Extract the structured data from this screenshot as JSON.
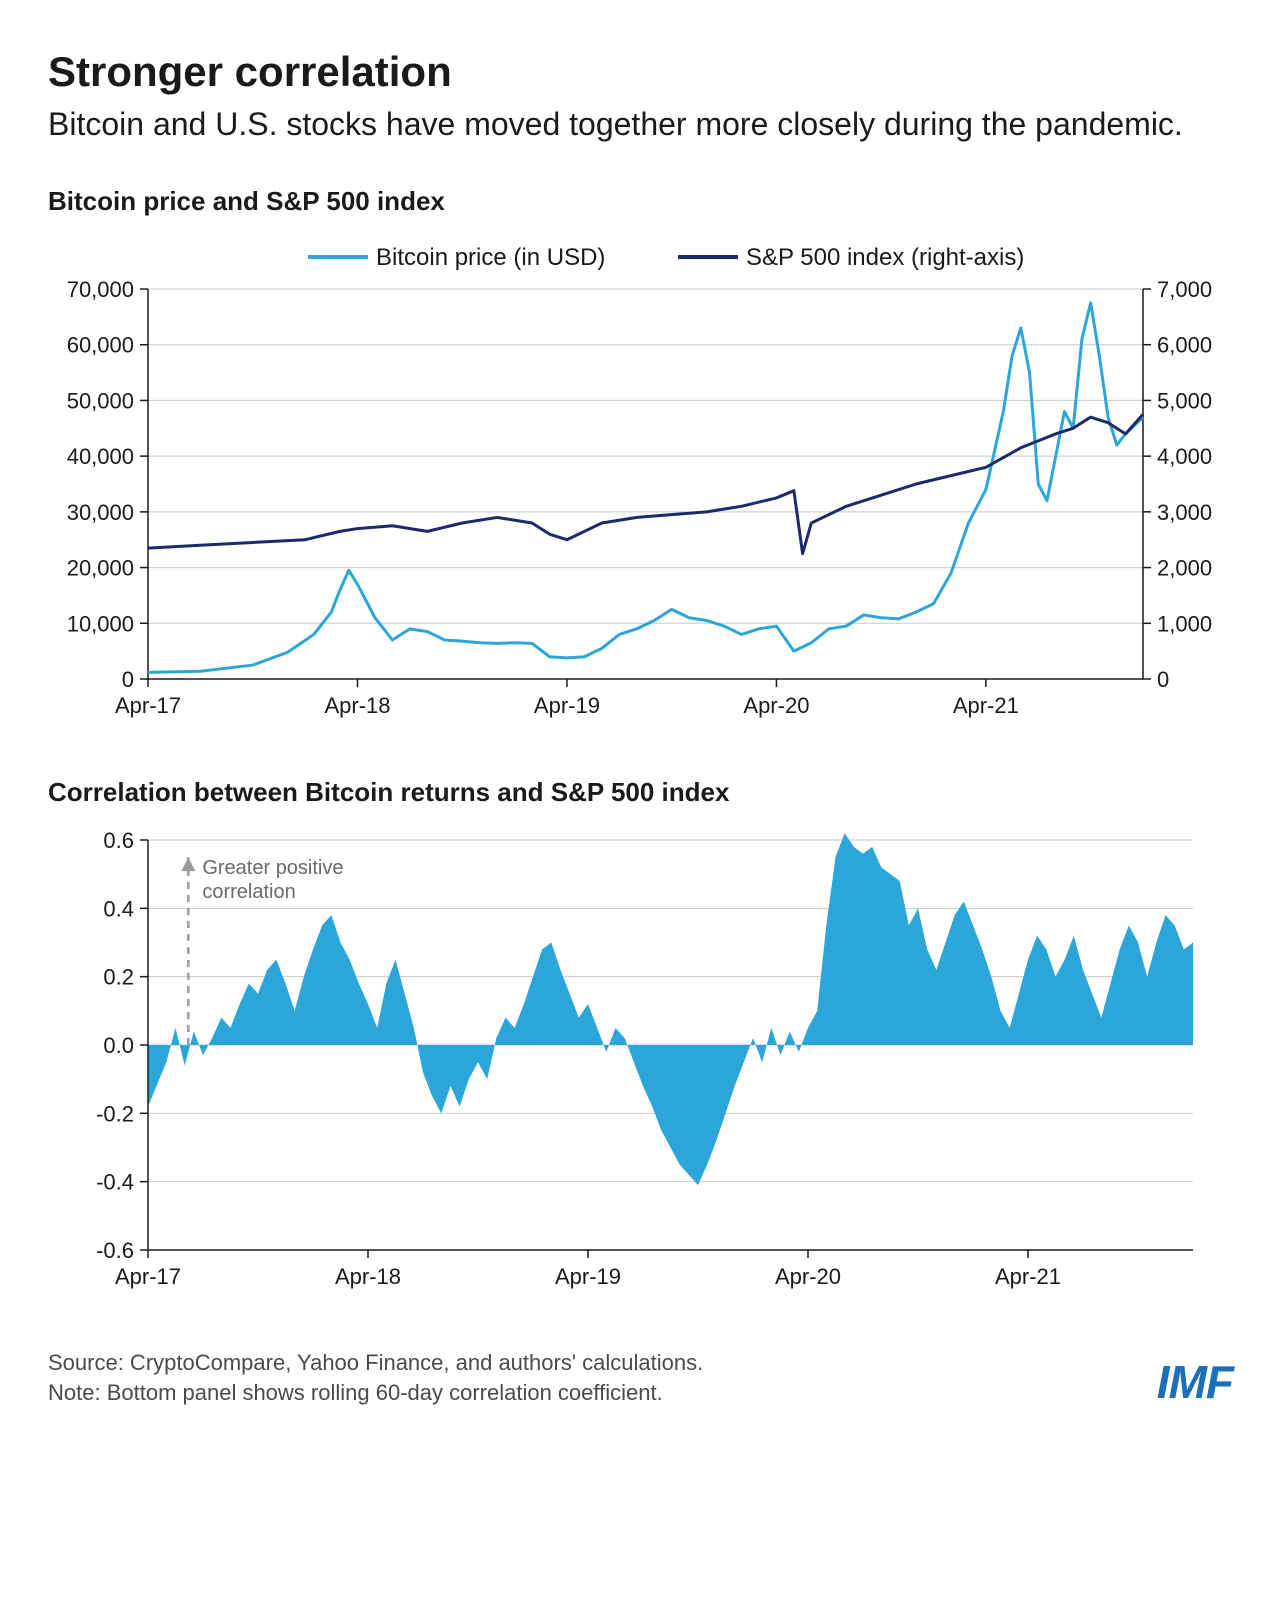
{
  "header": {
    "title": "Stronger correlation",
    "subtitle": "Bitcoin and U.S. stocks have moved together more closely during the pandemic."
  },
  "chart1": {
    "type": "line",
    "title": "Bitcoin price and S&P 500 index",
    "legend": {
      "series_a": "Bitcoin price (in USD)",
      "series_b": "S&P 500 index (right-axis)"
    },
    "colors": {
      "bitcoin": "#2ca6d9",
      "sp500": "#1a2a6c",
      "grid": "#c8c8c8",
      "axis": "#1a1a1a",
      "background": "#ffffff"
    },
    "line_width": {
      "bitcoin": 3,
      "sp500": 3
    },
    "x_labels": [
      "Apr-17",
      "Apr-18",
      "Apr-19",
      "Apr-20",
      "Apr-21"
    ],
    "left_axis": {
      "min": 0,
      "max": 70000,
      "step": 10000,
      "ticks": [
        0,
        10000,
        20000,
        30000,
        40000,
        50000,
        60000,
        70000
      ]
    },
    "right_axis": {
      "min": 0,
      "max": 7000,
      "step": 1000,
      "ticks": [
        0,
        1000,
        2000,
        3000,
        4000,
        5000,
        6000,
        7000
      ]
    },
    "label_fontsize": 22,
    "legend_fontsize": 24,
    "bitcoin_data": [
      [
        0,
        1200
      ],
      [
        3,
        1400
      ],
      [
        6,
        2500
      ],
      [
        8,
        4800
      ],
      [
        9.5,
        8000
      ],
      [
        10.5,
        12000
      ],
      [
        11,
        16000
      ],
      [
        11.5,
        19500
      ],
      [
        12,
        17000
      ],
      [
        12.5,
        14000
      ],
      [
        13,
        11000
      ],
      [
        13.5,
        9000
      ],
      [
        14,
        7000
      ],
      [
        15,
        9000
      ],
      [
        16,
        8500
      ],
      [
        17,
        7000
      ],
      [
        18,
        6800
      ],
      [
        19,
        6500
      ],
      [
        20,
        6400
      ],
      [
        21,
        6500
      ],
      [
        22,
        6400
      ],
      [
        23,
        4000
      ],
      [
        24,
        3800
      ],
      [
        25,
        4000
      ],
      [
        26,
        5500
      ],
      [
        27,
        8000
      ],
      [
        28,
        9000
      ],
      [
        29,
        10500
      ],
      [
        30,
        12500
      ],
      [
        31,
        11000
      ],
      [
        32,
        10500
      ],
      [
        33,
        9500
      ],
      [
        34,
        8000
      ],
      [
        35,
        9000
      ],
      [
        36,
        9500
      ],
      [
        37,
        5000
      ],
      [
        38,
        6500
      ],
      [
        39,
        9000
      ],
      [
        40,
        9500
      ],
      [
        41,
        11500
      ],
      [
        42,
        11000
      ],
      [
        43,
        10800
      ],
      [
        44,
        12000
      ],
      [
        45,
        13500
      ],
      [
        46,
        19000
      ],
      [
        47,
        28000
      ],
      [
        48,
        34000
      ],
      [
        49,
        48000
      ],
      [
        49.5,
        58000
      ],
      [
        50,
        63000
      ],
      [
        50.5,
        55000
      ],
      [
        51,
        35000
      ],
      [
        51.5,
        32000
      ],
      [
        52,
        40000
      ],
      [
        52.5,
        48000
      ],
      [
        53,
        45000
      ],
      [
        53.5,
        61000
      ],
      [
        54,
        67500
      ],
      [
        54.5,
        58000
      ],
      [
        55,
        47000
      ],
      [
        55.5,
        42000
      ],
      [
        56,
        44000
      ],
      [
        57,
        47000
      ]
    ],
    "sp500_data": [
      [
        0,
        2350
      ],
      [
        3,
        2400
      ],
      [
        6,
        2450
      ],
      [
        9,
        2500
      ],
      [
        11,
        2650
      ],
      [
        12,
        2700
      ],
      [
        14,
        2750
      ],
      [
        16,
        2650
      ],
      [
        18,
        2800
      ],
      [
        20,
        2900
      ],
      [
        22,
        2800
      ],
      [
        23,
        2600
      ],
      [
        24,
        2500
      ],
      [
        26,
        2800
      ],
      [
        28,
        2900
      ],
      [
        30,
        2950
      ],
      [
        32,
        3000
      ],
      [
        34,
        3100
      ],
      [
        36,
        3250
      ],
      [
        37,
        3380
      ],
      [
        37.5,
        2250
      ],
      [
        38,
        2800
      ],
      [
        40,
        3100
      ],
      [
        42,
        3300
      ],
      [
        44,
        3500
      ],
      [
        46,
        3650
      ],
      [
        48,
        3800
      ],
      [
        50,
        4150
      ],
      [
        52,
        4400
      ],
      [
        53,
        4500
      ],
      [
        54,
        4700
      ],
      [
        55,
        4600
      ],
      [
        56,
        4400
      ],
      [
        57,
        4750
      ]
    ]
  },
  "chart2": {
    "type": "area",
    "title": "Correlation between Bitcoin returns and S&P 500 index",
    "annotation": "Greater positive correlation",
    "colors": {
      "fill": "#2ca6d9",
      "grid": "#c8c8c8",
      "axis": "#1a1a1a",
      "arrow": "#9a9a9a",
      "background": "#ffffff"
    },
    "x_labels": [
      "Apr-17",
      "Apr-18",
      "Apr-19",
      "Apr-20",
      "Apr-21"
    ],
    "y_axis": {
      "min": -0.6,
      "max": 0.6,
      "step": 0.2,
      "ticks": [
        -0.6,
        -0.4,
        -0.2,
        0.0,
        0.2,
        0.4,
        0.6
      ]
    },
    "label_fontsize": 22,
    "correlation_data": [
      [
        0,
        -0.18
      ],
      [
        1,
        -0.05
      ],
      [
        1.5,
        0.05
      ],
      [
        2,
        -0.06
      ],
      [
        2.5,
        0.04
      ],
      [
        3,
        -0.03
      ],
      [
        3.5,
        0.02
      ],
      [
        4,
        0.08
      ],
      [
        4.5,
        0.05
      ],
      [
        5,
        0.12
      ],
      [
        5.5,
        0.18
      ],
      [
        6,
        0.15
      ],
      [
        6.5,
        0.22
      ],
      [
        7,
        0.25
      ],
      [
        7.5,
        0.18
      ],
      [
        8,
        0.1
      ],
      [
        8.5,
        0.2
      ],
      [
        9,
        0.28
      ],
      [
        9.5,
        0.35
      ],
      [
        10,
        0.38
      ],
      [
        10.5,
        0.3
      ],
      [
        11,
        0.25
      ],
      [
        11.5,
        0.18
      ],
      [
        12,
        0.12
      ],
      [
        12.5,
        0.05
      ],
      [
        13,
        0.18
      ],
      [
        13.5,
        0.25
      ],
      [
        14,
        0.15
      ],
      [
        14.5,
        0.05
      ],
      [
        15,
        -0.08
      ],
      [
        15.5,
        -0.15
      ],
      [
        16,
        -0.2
      ],
      [
        16.5,
        -0.12
      ],
      [
        17,
        -0.18
      ],
      [
        17.5,
        -0.1
      ],
      [
        18,
        -0.05
      ],
      [
        18.5,
        -0.1
      ],
      [
        19,
        0.02
      ],
      [
        19.5,
        0.08
      ],
      [
        20,
        0.05
      ],
      [
        20.5,
        0.12
      ],
      [
        21,
        0.2
      ],
      [
        21.5,
        0.28
      ],
      [
        22,
        0.3
      ],
      [
        22.5,
        0.22
      ],
      [
        23,
        0.15
      ],
      [
        23.5,
        0.08
      ],
      [
        24,
        0.12
      ],
      [
        24.5,
        0.05
      ],
      [
        25,
        -0.02
      ],
      [
        25.5,
        0.05
      ],
      [
        26,
        0.02
      ],
      [
        26.5,
        -0.05
      ],
      [
        27,
        -0.12
      ],
      [
        27.5,
        -0.18
      ],
      [
        28,
        -0.25
      ],
      [
        28.5,
        -0.3
      ],
      [
        29,
        -0.35
      ],
      [
        29.5,
        -0.38
      ],
      [
        30,
        -0.41
      ],
      [
        30.5,
        -0.35
      ],
      [
        31,
        -0.28
      ],
      [
        31.5,
        -0.2
      ],
      [
        32,
        -0.12
      ],
      [
        32.5,
        -0.05
      ],
      [
        33,
        0.02
      ],
      [
        33.5,
        -0.05
      ],
      [
        34,
        0.05
      ],
      [
        34.5,
        -0.03
      ],
      [
        35,
        0.04
      ],
      [
        35.5,
        -0.02
      ],
      [
        36,
        0.05
      ],
      [
        36.5,
        0.1
      ],
      [
        37,
        0.35
      ],
      [
        37.5,
        0.55
      ],
      [
        38,
        0.62
      ],
      [
        38.5,
        0.58
      ],
      [
        39,
        0.56
      ],
      [
        39.5,
        0.58
      ],
      [
        40,
        0.52
      ],
      [
        40.5,
        0.5
      ],
      [
        41,
        0.48
      ],
      [
        41.5,
        0.35
      ],
      [
        42,
        0.4
      ],
      [
        42.5,
        0.28
      ],
      [
        43,
        0.22
      ],
      [
        43.5,
        0.3
      ],
      [
        44,
        0.38
      ],
      [
        44.5,
        0.42
      ],
      [
        45,
        0.35
      ],
      [
        45.5,
        0.28
      ],
      [
        46,
        0.2
      ],
      [
        46.5,
        0.1
      ],
      [
        47,
        0.05
      ],
      [
        47.5,
        0.15
      ],
      [
        48,
        0.25
      ],
      [
        48.5,
        0.32
      ],
      [
        49,
        0.28
      ],
      [
        49.5,
        0.2
      ],
      [
        50,
        0.25
      ],
      [
        50.5,
        0.32
      ],
      [
        51,
        0.22
      ],
      [
        51.5,
        0.15
      ],
      [
        52,
        0.08
      ],
      [
        52.5,
        0.18
      ],
      [
        53,
        0.28
      ],
      [
        53.5,
        0.35
      ],
      [
        54,
        0.3
      ],
      [
        54.5,
        0.2
      ],
      [
        55,
        0.3
      ],
      [
        55.5,
        0.38
      ],
      [
        56,
        0.35
      ],
      [
        56.5,
        0.28
      ],
      [
        57,
        0.3
      ]
    ]
  },
  "footer": {
    "source": "Source: CryptoCompare, Yahoo Finance, and authors' calculations.",
    "note": "Note: Bottom panel shows rolling 60-day correlation coefficient.",
    "logo": "IMF"
  }
}
